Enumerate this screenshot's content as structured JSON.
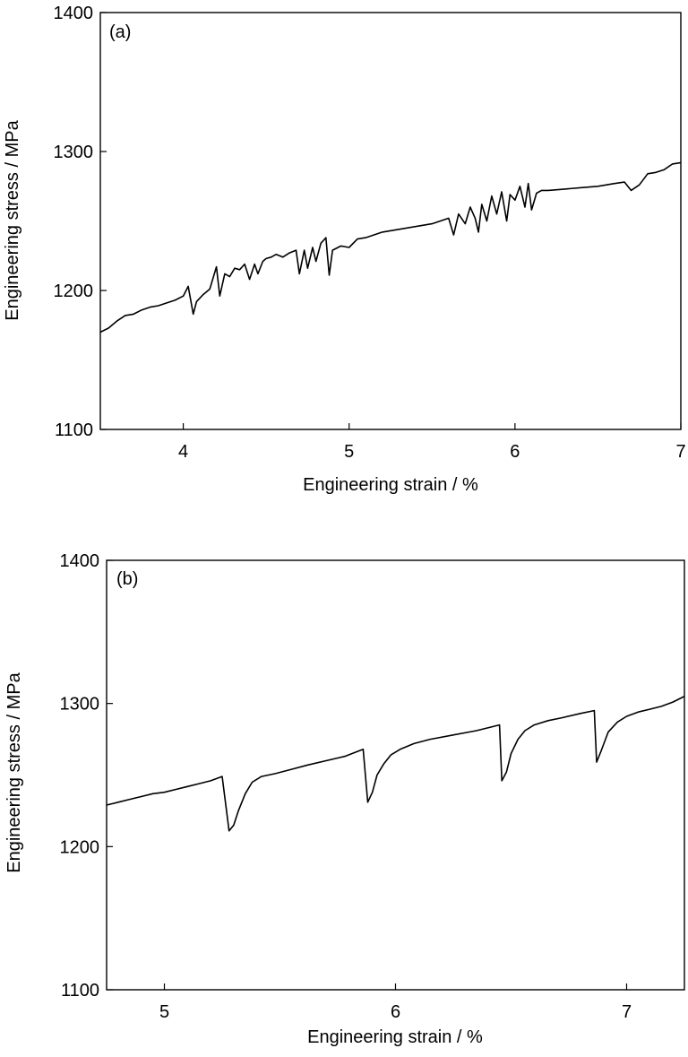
{
  "chart_data": [
    {
      "type": "line",
      "panel_label": "(a)",
      "xlabel": "Engineering strain / %",
      "ylabel": "Engineering stress / MPa",
      "xlim": [
        3.5,
        7.0
      ],
      "ylim": [
        1100,
        1400
      ],
      "xticks": [
        4,
        5,
        6,
        7
      ],
      "xtick_labels": [
        "4",
        "5",
        "6",
        "7"
      ],
      "yticks": [
        1100,
        1200,
        1300,
        1400
      ],
      "ytick_labels": [
        "1100",
        "1200",
        "1300",
        "1400"
      ],
      "grid": false,
      "series": [
        {
          "x": [
            3.5,
            3.55,
            3.6,
            3.65,
            3.7,
            3.75,
            3.8,
            3.85,
            3.9,
            3.95,
            4.0,
            4.03,
            4.06,
            4.08,
            4.12,
            4.16,
            4.2,
            4.22,
            4.25,
            4.28,
            4.31,
            4.34,
            4.37,
            4.4,
            4.43,
            4.45,
            4.48,
            4.5,
            4.53,
            4.56,
            4.6,
            4.64,
            4.68,
            4.7,
            4.73,
            4.75,
            4.78,
            4.8,
            4.83,
            4.86,
            4.88,
            4.9,
            4.95,
            5.0,
            5.05,
            5.1,
            5.15,
            5.2,
            5.3,
            5.4,
            5.5,
            5.6,
            5.63,
            5.66,
            5.7,
            5.73,
            5.76,
            5.78,
            5.8,
            5.83,
            5.86,
            5.89,
            5.92,
            5.95,
            5.97,
            6.0,
            6.03,
            6.06,
            6.08,
            6.1,
            6.13,
            6.16,
            6.2,
            6.3,
            6.4,
            6.5,
            6.6,
            6.66,
            6.7,
            6.75,
            6.8,
            6.85,
            6.9,
            6.95,
            7.0
          ],
          "y": [
            1170,
            1173,
            1178,
            1182,
            1183,
            1186,
            1188,
            1189,
            1191,
            1193,
            1196,
            1203,
            1183,
            1192,
            1197,
            1201,
            1217,
            1196,
            1212,
            1210,
            1216,
            1215,
            1219,
            1208,
            1219,
            1212,
            1221,
            1223,
            1224,
            1226,
            1224,
            1227,
            1229,
            1212,
            1229,
            1216,
            1231,
            1221,
            1234,
            1238,
            1211,
            1229,
            1232,
            1231,
            1237,
            1238,
            1240,
            1242,
            1244,
            1246,
            1248,
            1252,
            1240,
            1255,
            1248,
            1260,
            1252,
            1242,
            1262,
            1250,
            1268,
            1255,
            1271,
            1250,
            1269,
            1265,
            1275,
            1260,
            1277,
            1258,
            1270,
            1272,
            1272,
            1273,
            1274,
            1275,
            1277,
            1278,
            1272,
            1276,
            1284,
            1285,
            1287,
            1291,
            1292
          ]
        }
      ]
    },
    {
      "type": "line",
      "panel_label": "(b)",
      "xlabel": "Engineering strain / %",
      "ylabel": "Engineering stress / MPa",
      "xlim": [
        4.75,
        7.25
      ],
      "ylim": [
        1100,
        1400
      ],
      "xticks": [
        5,
        6,
        7
      ],
      "xtick_labels": [
        "5",
        "6",
        "7"
      ],
      "yticks": [
        1100,
        1200,
        1300,
        1400
      ],
      "ytick_labels": [
        "1100",
        "1200",
        "1300",
        "1400"
      ],
      "grid": false,
      "series": [
        {
          "x": [
            4.75,
            4.8,
            4.85,
            4.9,
            4.95,
            5.0,
            5.05,
            5.1,
            5.15,
            5.2,
            5.25,
            5.28,
            5.3,
            5.32,
            5.35,
            5.38,
            5.42,
            5.48,
            5.55,
            5.62,
            5.7,
            5.78,
            5.86,
            5.88,
            5.9,
            5.92,
            5.95,
            5.98,
            6.02,
            6.08,
            6.15,
            6.25,
            6.35,
            6.45,
            6.46,
            6.48,
            6.5,
            6.53,
            6.56,
            6.6,
            6.66,
            6.72,
            6.8,
            6.86,
            6.87,
            6.89,
            6.92,
            6.96,
            7.0,
            7.05,
            7.1,
            7.15,
            7.2,
            7.25
          ],
          "y": [
            1229,
            1231,
            1233,
            1235,
            1237,
            1238,
            1240,
            1242,
            1244,
            1246,
            1249,
            1211,
            1215,
            1225,
            1237,
            1245,
            1249,
            1251,
            1254,
            1257,
            1260,
            1263,
            1268,
            1231,
            1238,
            1250,
            1258,
            1264,
            1268,
            1272,
            1275,
            1278,
            1281,
            1285,
            1246,
            1252,
            1265,
            1275,
            1281,
            1285,
            1288,
            1290,
            1293,
            1295,
            1259,
            1267,
            1280,
            1287,
            1291,
            1294,
            1296,
            1298,
            1301,
            1305
          ]
        }
      ]
    }
  ]
}
